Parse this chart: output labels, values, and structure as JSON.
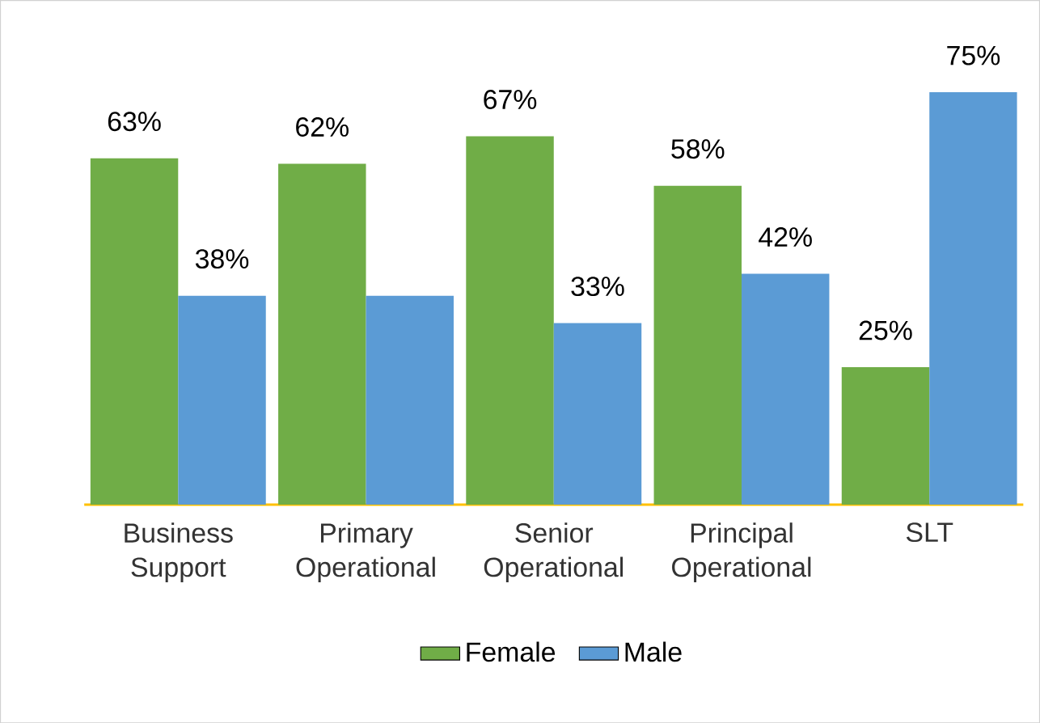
{
  "chart_data": {
    "type": "bar",
    "categories": [
      "Business Support",
      "Primary Operational",
      "Senior Operational",
      "Principal Operational",
      "SLT"
    ],
    "series": [
      {
        "name": "Female",
        "color": "#70ad47",
        "values": [
          63,
          62,
          67,
          58,
          25
        ],
        "value_labels": [
          "63%",
          "62%",
          "67%",
          "58%",
          "25%"
        ]
      },
      {
        "name": "Male",
        "color": "#5b9bd5",
        "values": [
          38,
          38,
          33,
          42,
          75
        ],
        "value_labels": [
          "38%",
          null,
          "33%",
          "42%",
          "75%"
        ]
      }
    ],
    "legend": "bottom"
  }
}
